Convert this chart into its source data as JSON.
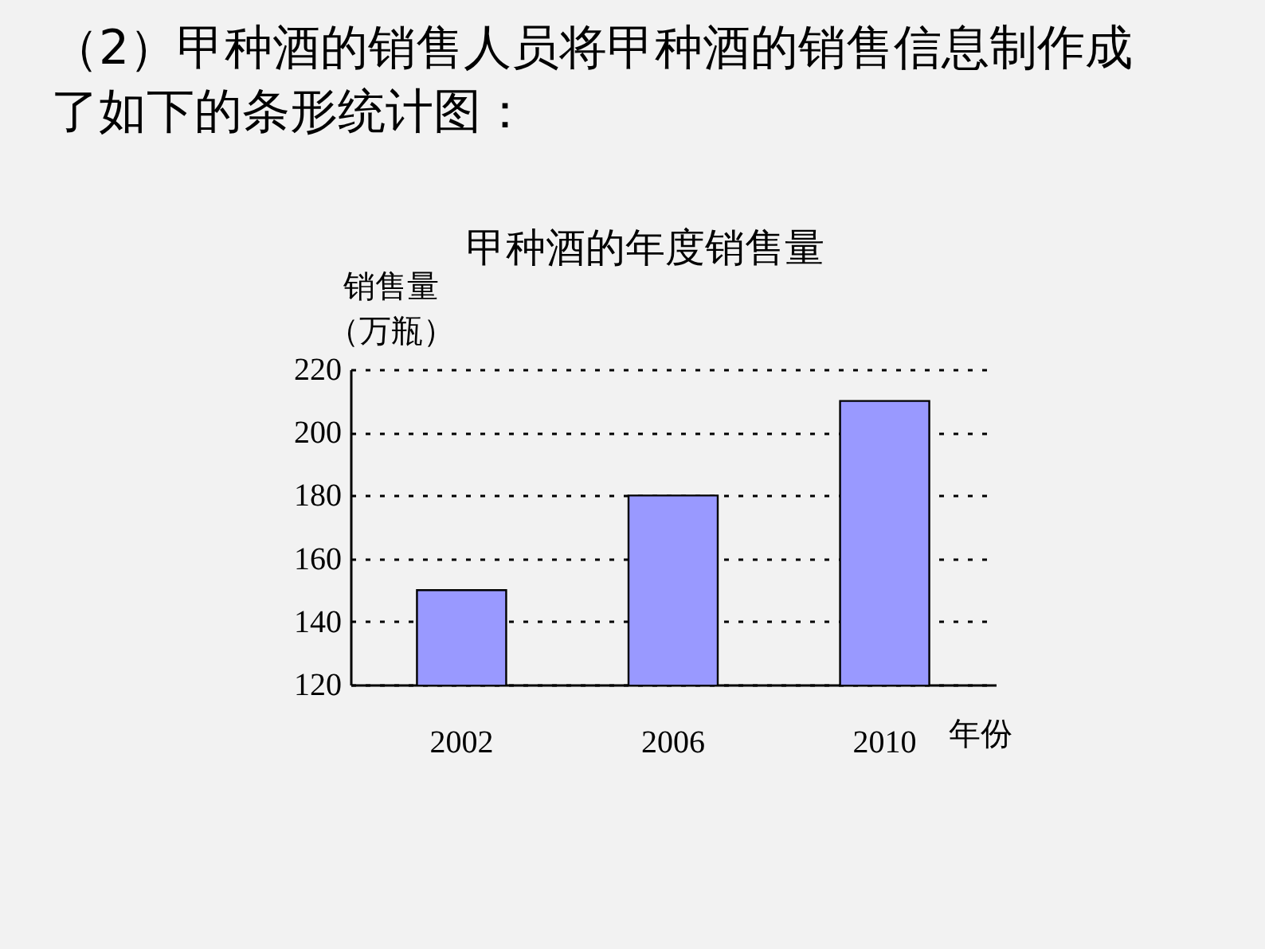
{
  "chart_data": {
    "type": "bar",
    "title": "甲种酒的年度销售量",
    "annotations": [
      "（2）甲种酒的销售人员将甲种酒的销售信息制作成了如下的条形统计图："
    ],
    "ylabel": [
      "销售量",
      "（万瓶）"
    ],
    "xlabel": "年份",
    "categories": [
      "2002",
      "2006",
      "2010"
    ],
    "values": [
      150,
      180,
      210
    ],
    "color": "#9999ff",
    "ylim": [
      120,
      220
    ],
    "yticks": [
      120,
      140,
      160,
      180,
      200,
      220
    ],
    "grid": "y"
  }
}
